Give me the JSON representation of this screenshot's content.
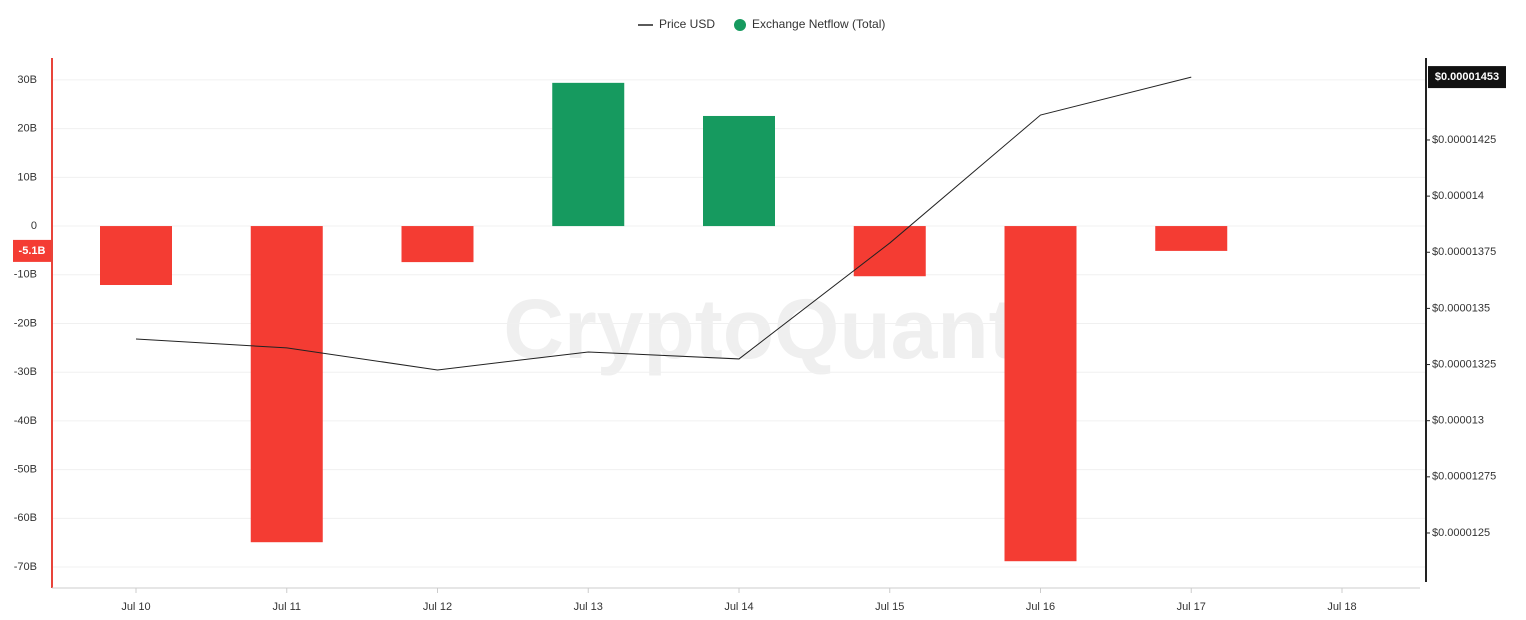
{
  "chart_data": {
    "type": "bar",
    "watermark": "CryptoQuant",
    "categories": [
      "Jul 10",
      "Jul 11",
      "Jul 12",
      "Jul 13",
      "Jul 14",
      "Jul 15",
      "Jul 16",
      "Jul 17",
      "Jul 18"
    ],
    "series": [
      {
        "name": "Price USD",
        "type": "line",
        "axis": "y2",
        "color": "#222222",
        "values": [
          1.3364e-05,
          1.3324e-05,
          1.3226e-05,
          1.3306e-05,
          1.3275e-05,
          1.3791e-05,
          1.4361e-05,
          1.453e-05,
          null
        ]
      },
      {
        "name": "Exchange Netflow (Total)",
        "type": "bar",
        "color": "#169a5f",
        "negative_color": "#f43c33",
        "values": [
          -12.1,
          -64.9,
          -7.4,
          29.4,
          22.6,
          -10.3,
          -68.8,
          -5.1,
          null
        ]
      }
    ],
    "ylim": [
      -74.3,
      34.5
    ],
    "yticks": [
      {
        "value": 30,
        "label": "30B"
      },
      {
        "value": 20,
        "label": "20B"
      },
      {
        "value": 10,
        "label": "10B"
      },
      0,
      {
        "value": -10,
        "label": "-10B"
      },
      {
        "value": -20,
        "label": "-20B"
      },
      {
        "value": -30,
        "label": "-30B"
      },
      {
        "value": -40,
        "label": "-40B"
      },
      {
        "value": -50,
        "label": "-50B"
      },
      {
        "value": -60,
        "label": "-60B"
      },
      {
        "value": -70,
        "label": "-70B"
      }
    ],
    "y2lim": [
      1.2255e-05,
      1.4615e-05
    ],
    "y2ticks": [
      {
        "value": 1.425e-05,
        "label": "$0.00001425"
      },
      {
        "value": 1.4e-05,
        "label": "$0.000014"
      },
      {
        "value": 1.375e-05,
        "label": "$0.00001375"
      },
      {
        "value": 1.35e-05,
        "label": "$0.0000135"
      },
      {
        "value": 1.325e-05,
        "label": "$0.00001325"
      },
      {
        "value": 1.3e-05,
        "label": "$0.000013"
      },
      {
        "value": 1.275e-05,
        "label": "$0.00001275"
      },
      {
        "value": 1.25e-05,
        "label": "$0.0000125"
      }
    ],
    "y_current": {
      "value": -5.1,
      "label": "-5.1B"
    },
    "y2_current": {
      "value": 1.453e-05,
      "label": "$0.00001453"
    },
    "grid": true
  }
}
